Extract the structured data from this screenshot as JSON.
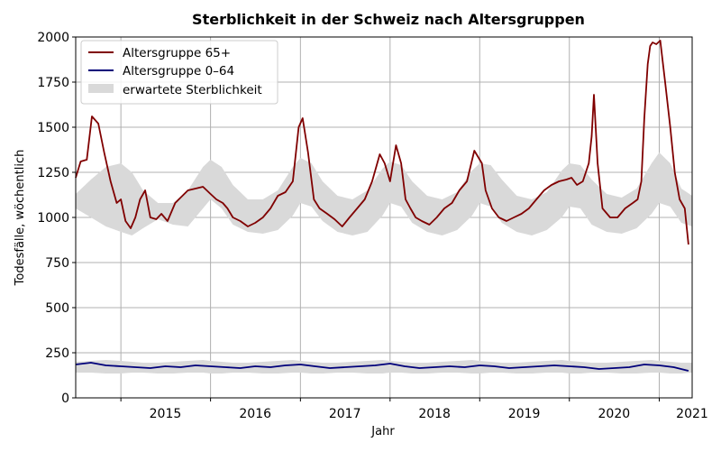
{
  "chart_data": {
    "type": "line",
    "title": "Sterblichkeit in der Schweiz nach Altersgruppen",
    "xlabel": "Jahr",
    "ylabel": "Todesfälle, wöchentlich",
    "xlim": [
      "2014-07-01",
      "2021-05-15"
    ],
    "ylim": [
      0,
      2000
    ],
    "yticks": [
      0,
      250,
      500,
      750,
      1000,
      1250,
      1500,
      1750,
      2000
    ],
    "year_labels": [
      "2015",
      "2016",
      "2017",
      "2018",
      "2019",
      "2020",
      "2021"
    ],
    "grid": true,
    "legend_placement": "top-left",
    "series": [
      {
        "name": "Altersgruppe 65+",
        "color": "#800000",
        "x": [
          "2014-07-01",
          "2014-07-21",
          "2014-08-15",
          "2014-09-05",
          "2014-10-01",
          "2014-10-25",
          "2014-11-20",
          "2014-12-15",
          "2015-01-01",
          "2015-01-20",
          "2015-02-10",
          "2015-03-01",
          "2015-03-20",
          "2015-04-10",
          "2015-05-01",
          "2015-05-25",
          "2015-06-15",
          "2015-07-10",
          "2015-08-10",
          "2015-09-01",
          "2015-10-01",
          "2015-11-01",
          "2015-12-01",
          "2016-01-01",
          "2016-01-25",
          "2016-02-20",
          "2016-03-10",
          "2016-04-01",
          "2016-05-01",
          "2016-06-01",
          "2016-07-01",
          "2016-08-01",
          "2016-09-01",
          "2016-10-01",
          "2016-11-01",
          "2016-12-01",
          "2016-12-25",
          "2017-01-10",
          "2017-02-01",
          "2017-02-25",
          "2017-03-20",
          "2017-04-20",
          "2017-05-20",
          "2017-06-20",
          "2017-07-20",
          "2017-08-20",
          "2017-09-20",
          "2017-10-20",
          "2017-11-20",
          "2017-12-10",
          "2018-01-01",
          "2018-01-25",
          "2018-02-15",
          "2018-03-05",
          "2018-03-25",
          "2018-04-15",
          "2018-05-10",
          "2018-06-10",
          "2018-07-10",
          "2018-08-10",
          "2018-09-10",
          "2018-10-10",
          "2018-11-10",
          "2018-12-10",
          "2019-01-10",
          "2019-01-25",
          "2019-02-20",
          "2019-03-20",
          "2019-04-20",
          "2019-05-20",
          "2019-06-20",
          "2019-07-20",
          "2019-08-20",
          "2019-09-20",
          "2019-10-20",
          "2019-11-20",
          "2019-12-20",
          "2020-01-10",
          "2020-02-01",
          "2020-02-25",
          "2020-03-20",
          "2020-04-01",
          "2020-04-10",
          "2020-04-25",
          "2020-05-15",
          "2020-06-15",
          "2020-07-15",
          "2020-08-15",
          "2020-09-15",
          "2020-10-05",
          "2020-10-20",
          "2020-11-01",
          "2020-11-15",
          "2020-11-25",
          "2020-12-05",
          "2020-12-20",
          "2021-01-05",
          "2021-01-25",
          "2021-02-15",
          "2021-03-05",
          "2021-03-25",
          "2021-04-15",
          "2021-04-30"
        ],
        "values": [
          1220,
          1310,
          1320,
          1560,
          1520,
          1360,
          1200,
          1080,
          1100,
          980,
          940,
          1000,
          1100,
          1150,
          1000,
          990,
          1020,
          980,
          1080,
          1110,
          1150,
          1160,
          1170,
          1130,
          1100,
          1080,
          1050,
          1000,
          980,
          950,
          970,
          1000,
          1050,
          1120,
          1140,
          1200,
          1500,
          1550,
          1360,
          1100,
          1050,
          1020,
          990,
          950,
          1000,
          1050,
          1100,
          1200,
          1350,
          1300,
          1200,
          1400,
          1300,
          1100,
          1050,
          1000,
          980,
          960,
          1000,
          1050,
          1080,
          1150,
          1200,
          1370,
          1300,
          1150,
          1050,
          1000,
          980,
          1000,
          1020,
          1050,
          1100,
          1150,
          1180,
          1200,
          1210,
          1220,
          1180,
          1200,
          1300,
          1450,
          1680,
          1300,
          1050,
          1000,
          1000,
          1050,
          1080,
          1100,
          1200,
          1550,
          1850,
          1950,
          1970,
          1960,
          1980,
          1750,
          1500,
          1250,
          1100,
          1050,
          850
        ]
      },
      {
        "name": "Altersgruppe 0–64",
        "color": "#00007a",
        "x": [
          "2014-07-01",
          "2014-09-01",
          "2014-11-01",
          "2015-01-01",
          "2015-03-01",
          "2015-05-01",
          "2015-07-01",
          "2015-09-01",
          "2015-11-01",
          "2016-01-01",
          "2016-03-01",
          "2016-05-01",
          "2016-07-01",
          "2016-09-01",
          "2016-11-01",
          "2017-01-01",
          "2017-03-01",
          "2017-05-01",
          "2017-07-01",
          "2017-09-01",
          "2017-11-01",
          "2018-01-01",
          "2018-03-01",
          "2018-05-01",
          "2018-07-01",
          "2018-09-01",
          "2018-11-01",
          "2019-01-01",
          "2019-03-01",
          "2019-05-01",
          "2019-07-01",
          "2019-09-01",
          "2019-11-01",
          "2020-01-01",
          "2020-03-01",
          "2020-05-01",
          "2020-07-01",
          "2020-09-01",
          "2020-11-01",
          "2021-01-01",
          "2021-03-01",
          "2021-04-30"
        ],
        "values": [
          185,
          195,
          180,
          175,
          170,
          165,
          175,
          170,
          180,
          175,
          170,
          165,
          175,
          170,
          180,
          185,
          175,
          165,
          170,
          175,
          180,
          190,
          175,
          165,
          170,
          175,
          170,
          180,
          175,
          165,
          170,
          175,
          180,
          175,
          170,
          160,
          165,
          170,
          185,
          180,
          170,
          150
        ]
      }
    ],
    "expected_band": {
      "name": "erwartete Sterblichkeit",
      "color": "#d9d9d9",
      "x": [
        "2014-07-01",
        "2014-09-01",
        "2014-11-01",
        "2015-01-01",
        "2015-02-15",
        "2015-04-01",
        "2015-06-01",
        "2015-08-01",
        "2015-10-01",
        "2015-12-01",
        "2016-01-01",
        "2016-02-15",
        "2016-04-01",
        "2016-06-01",
        "2016-08-01",
        "2016-10-01",
        "2016-12-01",
        "2017-01-01",
        "2017-02-15",
        "2017-04-01",
        "2017-06-01",
        "2017-08-01",
        "2017-10-01",
        "2017-12-01",
        "2018-01-01",
        "2018-02-15",
        "2018-04-01",
        "2018-06-01",
        "2018-08-01",
        "2018-10-01",
        "2018-12-01",
        "2019-01-01",
        "2019-02-15",
        "2019-04-01",
        "2019-06-01",
        "2019-08-01",
        "2019-10-01",
        "2019-12-01",
        "2020-01-01",
        "2020-02-15",
        "2020-04-01",
        "2020-06-01",
        "2020-08-01",
        "2020-10-01",
        "2020-12-01",
        "2021-01-01",
        "2021-02-15",
        "2021-04-01",
        "2021-05-15"
      ],
      "upper": [
        1130,
        1210,
        1280,
        1300,
        1250,
        1150,
        1080,
        1080,
        1150,
        1280,
        1320,
        1280,
        1180,
        1100,
        1100,
        1150,
        1280,
        1330,
        1300,
        1200,
        1120,
        1100,
        1150,
        1270,
        1310,
        1290,
        1200,
        1120,
        1100,
        1140,
        1260,
        1300,
        1290,
        1210,
        1120,
        1100,
        1140,
        1260,
        1300,
        1290,
        1210,
        1130,
        1110,
        1160,
        1300,
        1360,
        1300,
        1160,
        1120
      ],
      "lower": [
        1050,
        1000,
        950,
        920,
        900,
        940,
        990,
        960,
        950,
        1050,
        1100,
        1050,
        960,
        920,
        910,
        930,
        1010,
        1080,
        1060,
        980,
        920,
        900,
        920,
        1010,
        1080,
        1060,
        970,
        920,
        900,
        930,
        1010,
        1080,
        1060,
        970,
        920,
        900,
        930,
        1000,
        1060,
        1050,
        960,
        920,
        910,
        940,
        1020,
        1080,
        1060,
        970,
        950
      ],
      "upper_young": [
        200,
        205,
        210,
        205,
        200,
        195,
        195,
        200,
        205,
        210,
        205,
        200,
        195,
        195,
        200,
        205,
        210,
        205,
        200,
        195,
        195,
        200,
        205,
        210,
        205,
        200,
        195,
        195,
        200,
        205,
        210,
        205,
        200,
        195,
        195,
        200,
        205,
        210,
        205,
        200,
        195,
        195,
        200,
        205,
        210,
        205,
        200,
        195,
        195
      ],
      "lower_young": [
        140,
        140,
        135,
        135,
        140,
        140,
        135,
        135,
        140,
        140,
        135,
        135,
        140,
        140,
        135,
        135,
        140,
        140,
        135,
        135,
        140,
        140,
        135,
        135,
        140,
        140,
        135,
        135,
        140,
        140,
        135,
        135,
        140,
        140,
        135,
        135,
        140,
        140,
        135,
        135,
        140,
        140,
        135,
        135,
        140,
        140,
        135,
        135,
        140
      ]
    }
  }
}
